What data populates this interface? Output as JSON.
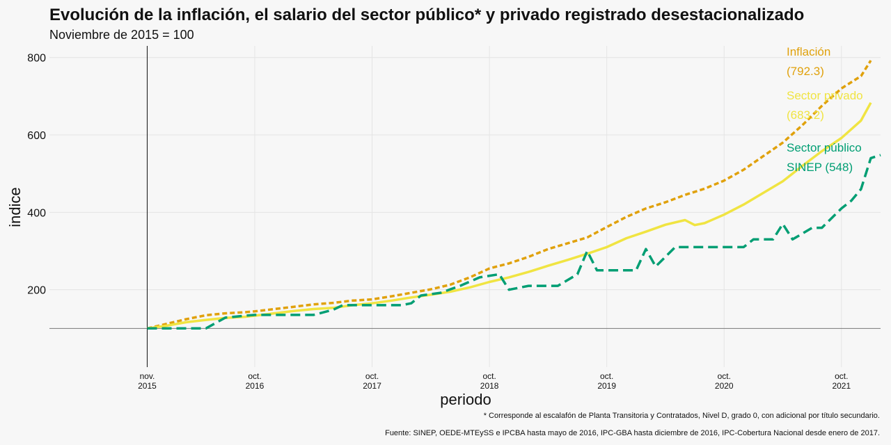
{
  "chart_data": {
    "type": "line",
    "title": "Evolución de la inflación, el salario del sector público* y privado registrado desestacionalizado",
    "subtitle": "Noviembre de 2015 = 100",
    "xlabel": "periodo",
    "ylabel": "indice",
    "ylim": [
      0,
      830
    ],
    "yticks": [
      200,
      400,
      600,
      800
    ],
    "xlim": [
      "2015-01",
      "2022-02"
    ],
    "xticks": [
      {
        "date": "2015-11",
        "line1": "nov.",
        "line2": "2015"
      },
      {
        "date": "2016-10",
        "line1": "oct.",
        "line2": "2016"
      },
      {
        "date": "2017-10",
        "line1": "oct.",
        "line2": "2017"
      },
      {
        "date": "2018-10",
        "line1": "oct.",
        "line2": "2018"
      },
      {
        "date": "2019-10",
        "line1": "oct.",
        "line2": "2019"
      },
      {
        "date": "2020-10",
        "line1": "oct.",
        "line2": "2020"
      },
      {
        "date": "2021-10",
        "line1": "oct.",
        "line2": "2021"
      }
    ],
    "reference_line_y": 100,
    "reference_line_x": "2015-11",
    "grid": true,
    "series": [
      {
        "name": "Inflación",
        "label_lines": [
          "Inflación",
          "(792.3)"
        ],
        "color": "#E0A10C",
        "style": "dotted",
        "points": [
          [
            "2015-11",
            100
          ],
          [
            "2016-01",
            112
          ],
          [
            "2016-03",
            124
          ],
          [
            "2016-05",
            134
          ],
          [
            "2016-07",
            139
          ],
          [
            "2016-09",
            142
          ],
          [
            "2016-10",
            144
          ],
          [
            "2016-12",
            150
          ],
          [
            "2017-02",
            156
          ],
          [
            "2017-04",
            162
          ],
          [
            "2017-06",
            166
          ],
          [
            "2017-08",
            172
          ],
          [
            "2017-10",
            175
          ],
          [
            "2017-12",
            183
          ],
          [
            "2018-02",
            192
          ],
          [
            "2018-04",
            201
          ],
          [
            "2018-06",
            213
          ],
          [
            "2018-08",
            232
          ],
          [
            "2018-10",
            255
          ],
          [
            "2018-12",
            268
          ],
          [
            "2019-02",
            285
          ],
          [
            "2019-04",
            305
          ],
          [
            "2019-06",
            320
          ],
          [
            "2019-08",
            335
          ],
          [
            "2019-10",
            362
          ],
          [
            "2019-12",
            388
          ],
          [
            "2020-02",
            410
          ],
          [
            "2020-04",
            426
          ],
          [
            "2020-06",
            445
          ],
          [
            "2020-08",
            461
          ],
          [
            "2020-10",
            482
          ],
          [
            "2020-12",
            510
          ],
          [
            "2021-02",
            545
          ],
          [
            "2021-04",
            580
          ],
          [
            "2021-06",
            625
          ],
          [
            "2021-08",
            675
          ],
          [
            "2021-10",
            720
          ],
          [
            "2021-12",
            752
          ],
          [
            "2022-01",
            792.3
          ]
        ]
      },
      {
        "name": "Sector privado",
        "label_lines": [
          "Sector privado",
          "(683.2)"
        ],
        "color": "#F0E442",
        "style": "solid",
        "points": [
          [
            "2015-11",
            100
          ],
          [
            "2016-01",
            107
          ],
          [
            "2016-03",
            116
          ],
          [
            "2016-05",
            122
          ],
          [
            "2016-07",
            127
          ],
          [
            "2016-09",
            130
          ],
          [
            "2016-10",
            133
          ],
          [
            "2016-12",
            139
          ],
          [
            "2017-02",
            145
          ],
          [
            "2017-04",
            150
          ],
          [
            "2017-06",
            153
          ],
          [
            "2017-08",
            160
          ],
          [
            "2017-10",
            165
          ],
          [
            "2017-12",
            172
          ],
          [
            "2018-02",
            180
          ],
          [
            "2018-04",
            187
          ],
          [
            "2018-06",
            195
          ],
          [
            "2018-08",
            206
          ],
          [
            "2018-10",
            220
          ],
          [
            "2018-12",
            232
          ],
          [
            "2019-02",
            246
          ],
          [
            "2019-04",
            262
          ],
          [
            "2019-06",
            277
          ],
          [
            "2019-08",
            293
          ],
          [
            "2019-10",
            310
          ],
          [
            "2019-12",
            333
          ],
          [
            "2020-02",
            350
          ],
          [
            "2020-04",
            368
          ],
          [
            "2020-06",
            380
          ],
          [
            "2020-07",
            367
          ],
          [
            "2020-08",
            372
          ],
          [
            "2020-10",
            394
          ],
          [
            "2020-12",
            420
          ],
          [
            "2021-02",
            450
          ],
          [
            "2021-04",
            480
          ],
          [
            "2021-06",
            520
          ],
          [
            "2021-08",
            558
          ],
          [
            "2021-10",
            592
          ],
          [
            "2021-12",
            637
          ],
          [
            "2022-01",
            683.2
          ]
        ]
      },
      {
        "name": "Sector público SINEP",
        "label_lines": [
          "Sector público",
          "SINEP (548)"
        ],
        "color": "#009E73",
        "style": "dashed",
        "points": [
          [
            "2015-11",
            100
          ],
          [
            "2016-05",
            100
          ],
          [
            "2016-07",
            128
          ],
          [
            "2016-09",
            133
          ],
          [
            "2016-10",
            135
          ],
          [
            "2017-01",
            135
          ],
          [
            "2017-04",
            135
          ],
          [
            "2017-06",
            148
          ],
          [
            "2017-07",
            160
          ],
          [
            "2017-09",
            160
          ],
          [
            "2018-01",
            160
          ],
          [
            "2018-02",
            165
          ],
          [
            "2018-03",
            185
          ],
          [
            "2018-05",
            192
          ],
          [
            "2018-07",
            210
          ],
          [
            "2018-09",
            232
          ],
          [
            "2018-11",
            240
          ],
          [
            "2018-12",
            200
          ],
          [
            "2019-02",
            210
          ],
          [
            "2019-05",
            210
          ],
          [
            "2019-07",
            240
          ],
          [
            "2019-08",
            300
          ],
          [
            "2019-09",
            250
          ],
          [
            "2019-11",
            250
          ],
          [
            "2020-01",
            250
          ],
          [
            "2020-02",
            305
          ],
          [
            "2020-03",
            260
          ],
          [
            "2020-05",
            310
          ],
          [
            "2020-09",
            310
          ],
          [
            "2020-12",
            310
          ],
          [
            "2021-01",
            330
          ],
          [
            "2021-03",
            330
          ],
          [
            "2021-04",
            370
          ],
          [
            "2021-05",
            330
          ],
          [
            "2021-07",
            360
          ],
          [
            "2021-08",
            360
          ],
          [
            "2021-10",
            410
          ],
          [
            "2021-11",
            430
          ],
          [
            "2021-12",
            460
          ],
          [
            "2022-01",
            540
          ],
          [
            "2022-02",
            548
          ]
        ]
      }
    ]
  },
  "notes": {
    "footnote": "* Corresponde al escalafón de Planta Transitoria y Contratados, Nivel D, grado 0, con adicional por título secundario.",
    "source": "Fuente: SINEP, OEDE-MTEySS e IPCBA hasta mayo de 2016, IPC-GBA hasta diciembre de 2016, IPC-Cobertura Nacional desde enero de 2017."
  }
}
